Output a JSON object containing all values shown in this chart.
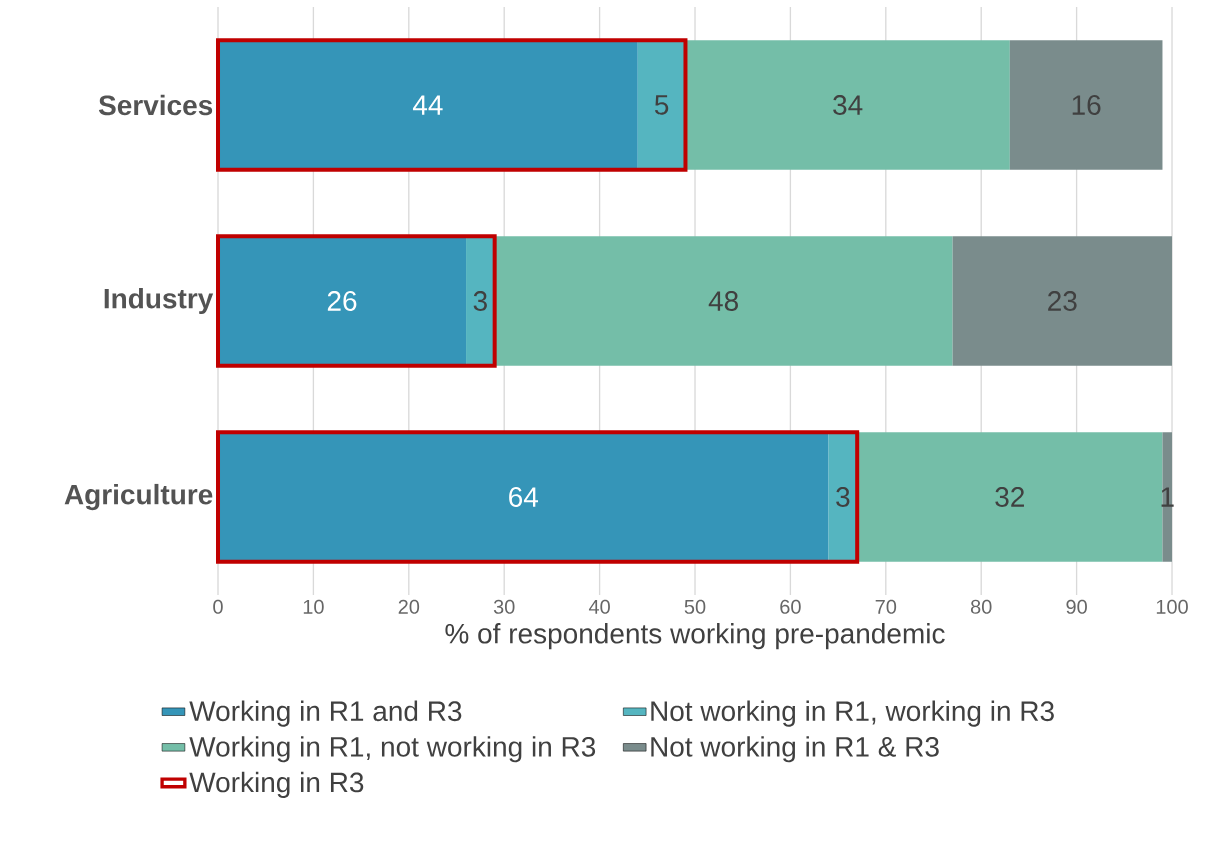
{
  "chart_data": {
    "type": "bar",
    "orientation": "horizontal",
    "xlabel": "% of respondents working pre-pandemic",
    "categories": [
      "Services",
      "Industry",
      "Agriculture"
    ],
    "series": [
      {
        "name": "Working in R1 and R3",
        "color": "#3595b8",
        "values": [
          44,
          26,
          64
        ],
        "base": [
          0,
          0,
          0
        ],
        "value_labels": [
          "44",
          "26",
          "64"
        ]
      },
      {
        "name": "Not working in R1, working in R3",
        "color": "#55b5c0",
        "values": [
          5,
          3,
          3
        ],
        "base": [
          44,
          26,
          64
        ],
        "value_labels": [
          "5",
          "3",
          "3"
        ]
      },
      {
        "name": "Working in R1, not working in R3",
        "color": "#74bea8",
        "values": [
          34,
          48,
          32
        ],
        "base": [
          49,
          29,
          67
        ],
        "value_labels": [
          "34",
          "48",
          "32"
        ]
      },
      {
        "name": "Not working in R1 & R3",
        "color": "#7a8c8c",
        "values": [
          16,
          23,
          1
        ],
        "base": [
          83,
          77,
          99
        ],
        "value_labels": [
          "16",
          "23",
          "1"
        ]
      },
      {
        "name": "Working in R3",
        "color": "#c00000",
        "values": [
          49,
          29,
          67
        ],
        "base": [
          0,
          0,
          0
        ]
      }
    ],
    "xlim": [
      0,
      100
    ],
    "xticks": [
      0,
      10,
      20,
      30,
      40,
      50,
      60,
      70,
      80,
      90,
      100
    ],
    "grid": "x",
    "legend": "bottom"
  }
}
